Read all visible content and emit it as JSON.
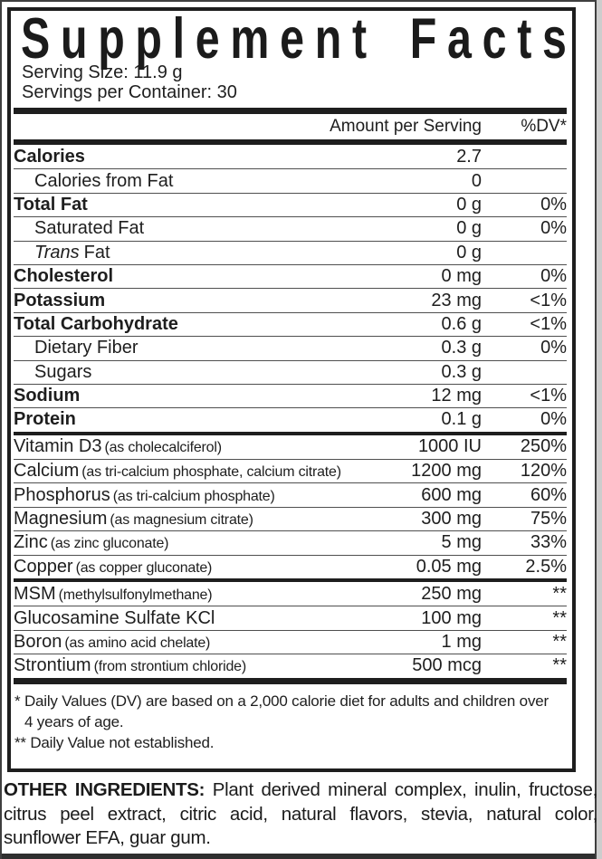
{
  "title": "Supplement Facts",
  "serving": {
    "size": "Serving Size: 11.9 g",
    "per_container": "Servings per Container: 30"
  },
  "header": {
    "amount": "Amount per Serving",
    "dv": "%DV*"
  },
  "sections": {
    "main": [
      {
        "name": "Calories",
        "bold": true,
        "amount": "2.7",
        "dv": ""
      },
      {
        "name": "Calories from Fat",
        "indent": true,
        "amount": "0",
        "dv": ""
      },
      {
        "name": "Total Fat",
        "bold": true,
        "amount": "0 g",
        "dv": "0%"
      },
      {
        "name": "Saturated Fat",
        "indent": true,
        "amount": "0 g",
        "dv": "0%"
      },
      {
        "name": "Fat",
        "italic_prefix": "Trans",
        "indent": true,
        "amount": "0 g",
        "dv": ""
      },
      {
        "name": "Cholesterol",
        "bold": true,
        "amount": "0 mg",
        "dv": "0%"
      },
      {
        "name": "Potassium",
        "bold": true,
        "amount": "23 mg",
        "dv": "<1%"
      },
      {
        "name": "Total Carbohydrate",
        "bold": true,
        "amount": "0.6 g",
        "dv": "<1%"
      },
      {
        "name": "Dietary Fiber",
        "indent": true,
        "amount": "0.3 g",
        "dv": "0%"
      },
      {
        "name": "Sugars",
        "indent": true,
        "amount": "0.3 g",
        "dv": ""
      },
      {
        "name": "Sodium",
        "bold": true,
        "amount": "12 mg",
        "dv": "<1%"
      },
      {
        "name": "Protein",
        "bold": true,
        "amount": "0.1 g",
        "dv": "0%"
      }
    ],
    "vitamins": [
      {
        "name": "Vitamin D3",
        "paren": "(as cholecalciferol)",
        "amount": "1000 IU",
        "dv": "250%"
      },
      {
        "name": "Calcium",
        "paren": "(as tri-calcium phosphate, calcium citrate)",
        "amount": "1200 mg",
        "dv": "120%"
      },
      {
        "name": "Phosphorus",
        "paren": "(as tri-calcium phosphate)",
        "amount": "600 mg",
        "dv": "60%"
      },
      {
        "name": "Magnesium",
        "paren": "(as magnesium citrate)",
        "amount": "300 mg",
        "dv": "75%"
      },
      {
        "name": "Zinc",
        "paren": "(as zinc gluconate)",
        "amount": "5 mg",
        "dv": "33%"
      },
      {
        "name": "Copper",
        "paren": "(as copper gluconate)",
        "amount": "0.05 mg",
        "dv": "2.5%"
      }
    ],
    "others": [
      {
        "name": "MSM",
        "paren": "(methylsulfonylmethane)",
        "amount": "250 mg",
        "dv": "**"
      },
      {
        "name": "Glucosamine Sulfate KCl",
        "amount": "100 mg",
        "dv": "**"
      },
      {
        "name": "Boron",
        "paren": "(as amino acid chelate)",
        "amount": "1 mg",
        "dv": "**"
      },
      {
        "name": "Strontium",
        "paren": "(from strontium chloride)",
        "amount": "500 mcg",
        "dv": "**"
      }
    ]
  },
  "footnotes": [
    {
      "text": "* Daily Values (DV) are based on a 2,000 calorie diet for adults and children over",
      "indent": false
    },
    {
      "text": "4 years of age.",
      "indent": true
    },
    {
      "text": "** Daily Value not established.",
      "indent": false
    }
  ],
  "other_ingredients": {
    "label": "OTHER INGREDIENTS:",
    "text": "Plant derived mineral complex, inulin, fructose, citrus peel extract, citric acid, natural flavors, stevia, natural color, sunflower EFA, guar gum."
  },
  "colors": {
    "ink": "#1e1e1e",
    "separator": "#4f4f4f",
    "background": "#ffffff"
  }
}
